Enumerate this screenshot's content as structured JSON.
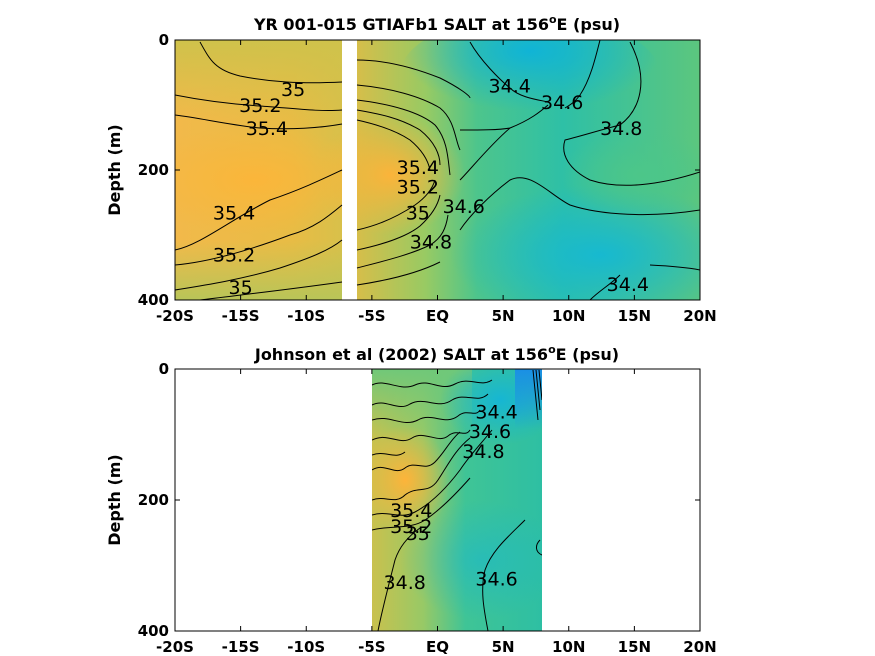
{
  "chart_data": [
    {
      "type": "heatmap",
      "title": "YR 001-015 GTIAFb1 SALT at 156",
      "title_superscript": "o",
      "title_suffix": "E (psu)",
      "ylabel": "Depth (m)",
      "xlim": [
        -20,
        20
      ],
      "ylim": [
        0,
        400
      ],
      "y_reversed": true,
      "x_ticks": [
        -20,
        -15,
        -10,
        -5,
        0,
        5,
        10,
        15,
        20
      ],
      "x_tick_labels": [
        "-20S",
        "-15S",
        "-10S",
        "-5S",
        "EQ",
        "5N",
        "10N",
        "15N",
        "20N"
      ],
      "y_ticks": [
        0,
        200,
        400
      ],
      "y_tick_labels": [
        "0",
        "200",
        "400"
      ],
      "missing_band_lat": [
        -7,
        -6.3
      ],
      "contour_labels": [
        {
          "text": "35",
          "lat": -11,
          "depth": 75
        },
        {
          "text": "35.2",
          "lat": -13.5,
          "depth": 100
        },
        {
          "text": "35.4",
          "lat": -13,
          "depth": 135
        },
        {
          "text": "35.4",
          "lat": -15.5,
          "depth": 265
        },
        {
          "text": "35.2",
          "lat": -15.5,
          "depth": 330
        },
        {
          "text": "35",
          "lat": -15,
          "depth": 380
        },
        {
          "text": "34.4",
          "lat": 5.5,
          "depth": 70
        },
        {
          "text": "34.6",
          "lat": 9.5,
          "depth": 95
        },
        {
          "text": "34.8",
          "lat": 14,
          "depth": 135
        },
        {
          "text": "35.4",
          "lat": -1.5,
          "depth": 195
        },
        {
          "text": "35.2",
          "lat": -1.5,
          "depth": 225
        },
        {
          "text": "35",
          "lat": -1.5,
          "depth": 265
        },
        {
          "text": "34.8",
          "lat": -0.5,
          "depth": 310
        },
        {
          "text": "34.6",
          "lat": 2,
          "depth": 255
        },
        {
          "text": "34.4",
          "lat": 14.5,
          "depth": 375
        }
      ]
    },
    {
      "type": "heatmap",
      "title": "Johnson et al (2002) SALT at 156",
      "title_superscript": "o",
      "title_suffix": "E (psu)",
      "ylabel": "Depth (m)",
      "xlim": [
        -20,
        20
      ],
      "ylim": [
        0,
        400
      ],
      "y_reversed": true,
      "data_lat_range": [
        -5,
        8
      ],
      "x_ticks": [
        -20,
        -15,
        -10,
        -5,
        0,
        5,
        10,
        15,
        20
      ],
      "x_tick_labels": [
        "-20S",
        "-15S",
        "-10S",
        "-5S",
        "EQ",
        "5N",
        "10N",
        "15N",
        "20N"
      ],
      "y_ticks": [
        0,
        200,
        400
      ],
      "y_tick_labels": [
        "0",
        "200",
        "400"
      ],
      "contour_labels": [
        {
          "text": "34.4",
          "lat": 4.5,
          "depth": 65
        },
        {
          "text": "34.6",
          "lat": 4,
          "depth": 95
        },
        {
          "text": "34.8",
          "lat": 3.5,
          "depth": 125
        },
        {
          "text": "35.4",
          "lat": -2,
          "depth": 215
        },
        {
          "text": "35.2",
          "lat": -2,
          "depth": 240
        },
        {
          "text": "35",
          "lat": -1.5,
          "depth": 250
        },
        {
          "text": "34.8",
          "lat": -2.5,
          "depth": 325
        },
        {
          "text": "34.6",
          "lat": 4.5,
          "depth": 320
        }
      ]
    }
  ]
}
